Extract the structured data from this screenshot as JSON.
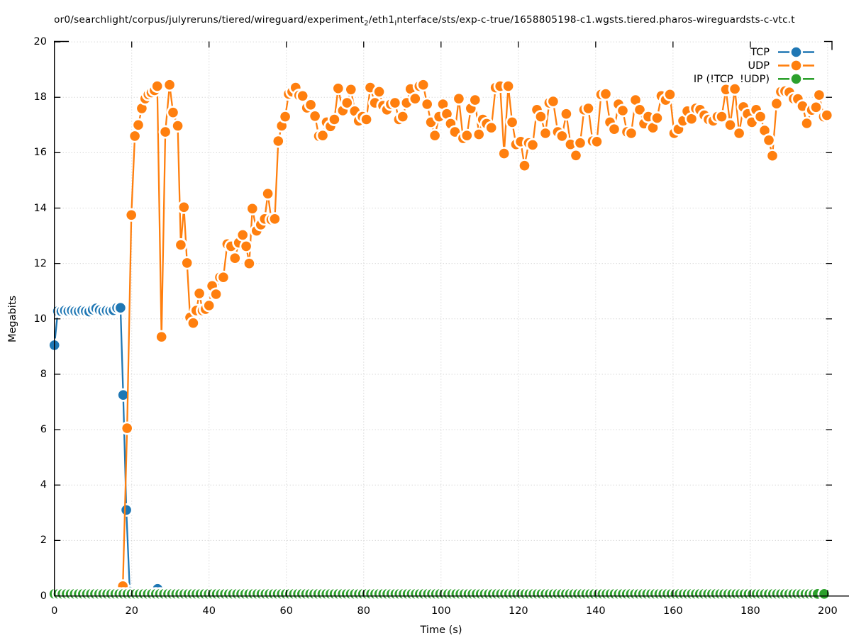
{
  "chart_data": {
    "type": "line",
    "title_segments": [
      {
        "text": "or0/searchlight/corpus/julyreruns/tiered/wireguard/experiment"
      },
      {
        "text": "2",
        "sub": true
      },
      {
        "text": "/eth1"
      },
      {
        "text": "i",
        "sub": true
      },
      {
        "text": "nterface/sts/exp-c-true/1658805198-c1.wgsts.tiered.pharos-wireguardsts-c-vtc.t"
      }
    ],
    "xlabel": "Time (s)",
    "ylabel": "Megabits",
    "xlim": [
      0,
      201
    ],
    "ylim": [
      0,
      20
    ],
    "xticks": [
      0,
      20,
      40,
      60,
      80,
      100,
      120,
      140,
      160,
      180,
      200
    ],
    "yticks": [
      0,
      2,
      4,
      6,
      8,
      10,
      12,
      14,
      16,
      18,
      20
    ],
    "grid": true,
    "legend_position": "top-right",
    "background": "#ffffff",
    "grid_color": "#c8c8c8",
    "border_color": "#000000",
    "series": [
      {
        "name": "TCP",
        "color": "#1f77b4",
        "points": [
          [
            0,
            9.05
          ],
          [
            0.9,
            10.28
          ],
          [
            1.8,
            10.27
          ],
          [
            2.7,
            10.3
          ],
          [
            3.6,
            10.28
          ],
          [
            4.5,
            10.3
          ],
          [
            5.4,
            10.28
          ],
          [
            6.3,
            10.27
          ],
          [
            7.2,
            10.3
          ],
          [
            8.1,
            10.28
          ],
          [
            9.0,
            10.26
          ],
          [
            9.9,
            10.33
          ],
          [
            10.8,
            10.38
          ],
          [
            11.7,
            10.32
          ],
          [
            12.6,
            10.28
          ],
          [
            13.5,
            10.3
          ],
          [
            14.4,
            10.29
          ],
          [
            15.3,
            10.31
          ],
          [
            16.2,
            10.4
          ],
          [
            17.1,
            10.4
          ],
          [
            17.8,
            7.25
          ],
          [
            18.6,
            3.1
          ],
          [
            19.5,
            0.15
          ],
          [
            26.7,
            0.25
          ]
        ]
      },
      {
        "name": "UDP",
        "color": "#ff7f0e",
        "points": [
          [
            17.7,
            0.35
          ],
          [
            18.8,
            6.05
          ],
          [
            19.9,
            13.75
          ],
          [
            20.8,
            16.6
          ],
          [
            21.7,
            17.0
          ],
          [
            22.6,
            17.6
          ],
          [
            23.5,
            17.95
          ],
          [
            24.3,
            18.1
          ],
          [
            25.1,
            18.17
          ],
          [
            25.9,
            18.25
          ],
          [
            26.6,
            18.4
          ],
          [
            27.7,
            9.35
          ],
          [
            28.7,
            16.75
          ],
          [
            29.8,
            18.45
          ],
          [
            30.7,
            17.45
          ],
          [
            31.9,
            16.97
          ],
          [
            32.7,
            12.67
          ],
          [
            33.5,
            14.03
          ],
          [
            34.3,
            12.02
          ],
          [
            35.1,
            10.05
          ],
          [
            35.9,
            9.85
          ],
          [
            36.7,
            10.3
          ],
          [
            37.5,
            10.92
          ],
          [
            38.3,
            10.3
          ],
          [
            39.1,
            10.35
          ],
          [
            40.0,
            10.48
          ],
          [
            40.8,
            11.19
          ],
          [
            41.8,
            10.89
          ],
          [
            42.8,
            11.5
          ],
          [
            43.7,
            11.5
          ],
          [
            44.7,
            12.7
          ],
          [
            45.7,
            12.62
          ],
          [
            46.7,
            12.19
          ],
          [
            47.7,
            12.75
          ],
          [
            48.7,
            13.03
          ],
          [
            49.6,
            12.62
          ],
          [
            50.4,
            12.0
          ],
          [
            51.2,
            13.98
          ],
          [
            52.3,
            13.18
          ],
          [
            53.4,
            13.4
          ],
          [
            54.4,
            13.61
          ],
          [
            55.2,
            14.52
          ],
          [
            56.1,
            13.58
          ],
          [
            57.0,
            13.61
          ],
          [
            57.9,
            16.42
          ],
          [
            58.8,
            16.97
          ],
          [
            59.7,
            17.3
          ],
          [
            60.6,
            18.12
          ],
          [
            61.5,
            18.2
          ],
          [
            62.4,
            18.35
          ],
          [
            63.3,
            18.07
          ],
          [
            64.2,
            18.05
          ],
          [
            65.3,
            17.62
          ],
          [
            66.3,
            17.73
          ],
          [
            67.4,
            17.32
          ],
          [
            68.4,
            16.6
          ],
          [
            69.4,
            16.62
          ],
          [
            70.4,
            17.1
          ],
          [
            71.4,
            16.95
          ],
          [
            72.4,
            17.2
          ],
          [
            73.4,
            18.32
          ],
          [
            74.6,
            17.52
          ],
          [
            75.7,
            17.8
          ],
          [
            76.7,
            18.28
          ],
          [
            77.7,
            17.5
          ],
          [
            78.7,
            17.15
          ],
          [
            79.7,
            17.3
          ],
          [
            80.7,
            17.2
          ],
          [
            81.7,
            18.35
          ],
          [
            82.9,
            17.8
          ],
          [
            84.0,
            18.2
          ],
          [
            85.0,
            17.7
          ],
          [
            86.0,
            17.55
          ],
          [
            87.0,
            17.75
          ],
          [
            88.1,
            17.8
          ],
          [
            89.1,
            17.2
          ],
          [
            90.1,
            17.3
          ],
          [
            91.1,
            17.8
          ],
          [
            92.1,
            18.3
          ],
          [
            93.3,
            17.95
          ],
          [
            94.4,
            18.4
          ],
          [
            95.4,
            18.45
          ],
          [
            96.4,
            17.75
          ],
          [
            97.4,
            17.1
          ],
          [
            98.4,
            16.62
          ],
          [
            99.5,
            17.3
          ],
          [
            100.5,
            17.75
          ],
          [
            101.5,
            17.4
          ],
          [
            102.5,
            17.05
          ],
          [
            103.6,
            16.75
          ],
          [
            104.6,
            17.95
          ],
          [
            105.7,
            16.52
          ],
          [
            106.7,
            16.62
          ],
          [
            107.7,
            17.6
          ],
          [
            108.8,
            17.9
          ],
          [
            109.8,
            16.66
          ],
          [
            110.8,
            17.2
          ],
          [
            111.8,
            17.05
          ],
          [
            113.0,
            16.9
          ],
          [
            114.1,
            18.35
          ],
          [
            115.3,
            18.4
          ],
          [
            116.3,
            15.97
          ],
          [
            117.4,
            18.4
          ],
          [
            118.4,
            17.1
          ],
          [
            119.4,
            16.3
          ],
          [
            120.6,
            16.4
          ],
          [
            121.6,
            15.53
          ],
          [
            122.7,
            16.35
          ],
          [
            123.7,
            16.28
          ],
          [
            124.8,
            17.55
          ],
          [
            125.8,
            17.3
          ],
          [
            127.0,
            16.7
          ],
          [
            128.0,
            17.8
          ],
          [
            129.0,
            17.85
          ],
          [
            130.2,
            16.75
          ],
          [
            131.3,
            16.6
          ],
          [
            132.4,
            17.4
          ],
          [
            133.5,
            16.3
          ],
          [
            134.9,
            15.9
          ],
          [
            136.0,
            16.35
          ],
          [
            137.0,
            17.55
          ],
          [
            138.1,
            17.6
          ],
          [
            139.2,
            16.42
          ],
          [
            140.3,
            16.4
          ],
          [
            141.4,
            18.1
          ],
          [
            142.6,
            18.12
          ],
          [
            143.7,
            17.1
          ],
          [
            144.8,
            16.85
          ],
          [
            145.9,
            17.75
          ],
          [
            147.0,
            17.52
          ],
          [
            148.1,
            16.75
          ],
          [
            149.2,
            16.7
          ],
          [
            150.3,
            17.9
          ],
          [
            151.4,
            17.55
          ],
          [
            152.5,
            17.05
          ],
          [
            153.6,
            17.3
          ],
          [
            154.8,
            16.9
          ],
          [
            155.9,
            17.25
          ],
          [
            157.0,
            18.05
          ],
          [
            158.1,
            17.9
          ],
          [
            159.2,
            18.1
          ],
          [
            160.3,
            16.7
          ],
          [
            161.4,
            16.85
          ],
          [
            162.6,
            17.15
          ],
          [
            163.7,
            17.5
          ],
          [
            164.8,
            17.22
          ],
          [
            165.9,
            17.6
          ],
          [
            167.0,
            17.55
          ],
          [
            168.1,
            17.35
          ],
          [
            169.2,
            17.2
          ],
          [
            170.4,
            17.15
          ],
          [
            171.5,
            17.3
          ],
          [
            172.6,
            17.3
          ],
          [
            173.7,
            18.28
          ],
          [
            174.8,
            17.0
          ],
          [
            176.0,
            18.3
          ],
          [
            177.1,
            16.7
          ],
          [
            178.2,
            17.65
          ],
          [
            179.3,
            17.4
          ],
          [
            180.4,
            17.1
          ],
          [
            181.5,
            17.55
          ],
          [
            182.6,
            17.3
          ],
          [
            183.7,
            16.8
          ],
          [
            184.8,
            16.45
          ],
          [
            185.7,
            15.89
          ],
          [
            186.8,
            17.77
          ],
          [
            187.9,
            18.2
          ],
          [
            189.0,
            18.22
          ],
          [
            190.1,
            18.18
          ],
          [
            191.2,
            17.95
          ],
          [
            192.3,
            17.94
          ],
          [
            193.5,
            17.68
          ],
          [
            194.6,
            17.06
          ],
          [
            195.9,
            17.54
          ],
          [
            197.0,
            17.64
          ],
          [
            197.8,
            18.08
          ],
          [
            199.0,
            17.3
          ],
          [
            199.8,
            17.35
          ]
        ]
      },
      {
        "name": "IP (!TCP  !UDP)",
        "color": "#2ca02c",
        "constant": {
          "start": 0,
          "end": 198,
          "step": 1.05,
          "value": 0.07
        },
        "final_point": [
          199.1,
          0.07
        ]
      }
    ]
  },
  "legend": {
    "items": [
      {
        "label": "TCP"
      },
      {
        "label": "UDP"
      },
      {
        "label": "IP (!TCP  !UDP)"
      }
    ]
  }
}
